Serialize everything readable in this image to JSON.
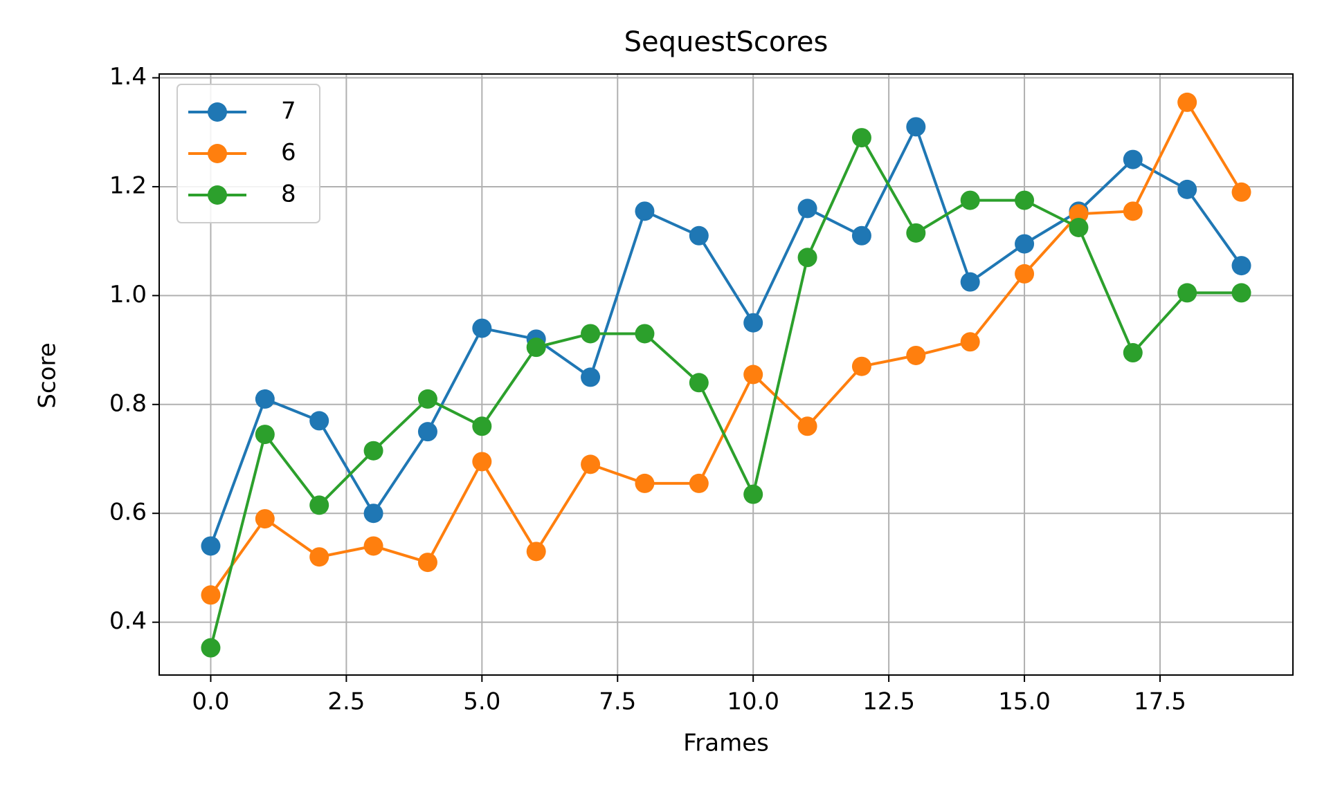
{
  "chart_data": {
    "type": "line",
    "title": "SequestScores",
    "xlabel": "Frames",
    "ylabel": "Score",
    "x": [
      0,
      1,
      2,
      3,
      4,
      5,
      6,
      7,
      8,
      9,
      10,
      11,
      12,
      13,
      14,
      15,
      16,
      17,
      18,
      19
    ],
    "series": [
      {
        "name": "7",
        "color": "#1f77b4",
        "values": [
          0.54,
          0.81,
          0.77,
          0.6,
          0.75,
          0.94,
          0.92,
          0.85,
          1.155,
          1.11,
          0.95,
          1.16,
          1.11,
          1.31,
          1.025,
          1.095,
          1.155,
          1.25,
          1.195,
          1.055
        ]
      },
      {
        "name": "6",
        "color": "#ff7f0e",
        "values": [
          0.45,
          0.59,
          0.52,
          0.54,
          0.51,
          0.695,
          0.53,
          0.69,
          0.655,
          0.655,
          0.855,
          0.76,
          0.87,
          0.89,
          0.915,
          1.04,
          1.15,
          1.155,
          1.355,
          1.19
        ]
      },
      {
        "name": "8",
        "color": "#2ca02c",
        "values": [
          0.353,
          0.745,
          0.615,
          0.715,
          0.81,
          0.76,
          0.905,
          0.93,
          0.93,
          0.84,
          0.635,
          1.07,
          1.29,
          1.115,
          1.175,
          1.175,
          1.125,
          0.895,
          1.005,
          1.005
        ]
      }
    ],
    "xlim": [
      -0.95,
      19.95
    ],
    "xticks": [
      {
        "value": 0,
        "label": "0.0"
      },
      {
        "value": 2.5,
        "label": "2.5"
      },
      {
        "value": 5,
        "label": "5.0"
      },
      {
        "value": 7.5,
        "label": "7.5"
      },
      {
        "value": 10,
        "label": "10.0"
      },
      {
        "value": 12.5,
        "label": "12.5"
      },
      {
        "value": 15,
        "label": "15.0"
      },
      {
        "value": 17.5,
        "label": "17.5"
      }
    ],
    "ylim": [
      0.303,
      1.407
    ],
    "yticks": [
      0.4,
      0.6,
      0.8,
      {
        "value": 1,
        "label": "1.0"
      },
      1.2,
      1.4
    ],
    "grid": true,
    "legend": "upper left"
  }
}
